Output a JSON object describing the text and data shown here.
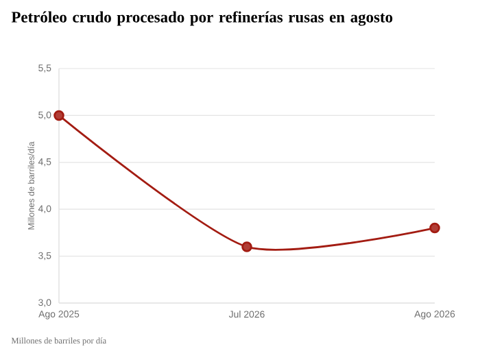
{
  "chart_data": {
    "type": "line",
    "title": "Petróleo crudo procesado por refinerías rusas en agosto",
    "ylabel": "Millones de barriles/día",
    "categories": [
      "Ago 2025",
      "Jul 2026",
      "Ago 2026"
    ],
    "series": [
      {
        "color": "#a31c12",
        "values": [
          5.0,
          3.6,
          3.8
        ]
      }
    ],
    "ylim": [
      3.0,
      5.5
    ],
    "yticks": [
      {
        "value": 3.0,
        "label": "3,0"
      },
      {
        "value": 3.5,
        "label": "3,5"
      },
      {
        "value": 4.0,
        "label": "4,0"
      },
      {
        "value": 4.5,
        "label": "4,5"
      },
      {
        "value": 5.0,
        "label": "5,0"
      },
      {
        "value": 5.5,
        "label": "5,5"
      }
    ],
    "grid": "y",
    "marker": "circle",
    "annotations": [
      "Millones de barriles por día"
    ]
  }
}
